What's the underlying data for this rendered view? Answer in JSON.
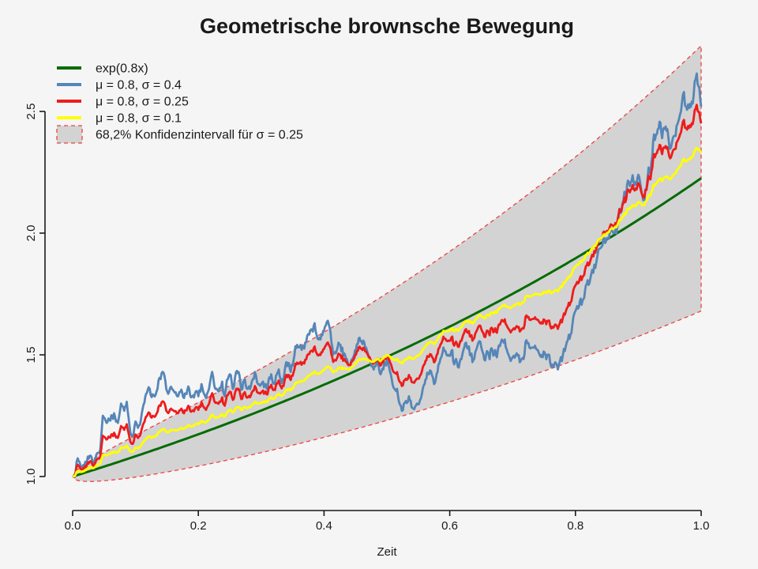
{
  "page": {
    "background_color": "#f5f5f5",
    "text_color": "#1a1a1a"
  },
  "chart_data": {
    "type": "line",
    "title": "Geometrische brownsche Bewegung",
    "x_axis": {
      "label": "Zeit",
      "range": [
        0,
        1
      ],
      "tick_values": [
        0,
        0.2,
        0.4,
        0.6,
        0.8,
        1
      ],
      "tick_labels": [
        "0.0",
        "0.2",
        "0.4",
        "0.6",
        "0.8",
        "1.0"
      ]
    },
    "y_axis": {
      "label": "",
      "range_shown": [
        1.0,
        2.5
      ],
      "tick_values": [
        1,
        1.5,
        2,
        2.5
      ],
      "tick_labels": [
        "1.0",
        "1.5",
        "2.0",
        "2.5"
      ]
    },
    "grid": false,
    "legend_position": "top-left",
    "series": [
      {
        "name": "exp-curve",
        "label": "exp(0.8x)",
        "color": "#056b05",
        "kind": "deterministic",
        "mu": 0.8,
        "start_value": 1.0,
        "end_value": 2.23
      },
      {
        "name": "gbm-sigma-0.4",
        "label": "μ = 0.8, σ = 0.4",
        "color": "#5586b8",
        "kind": "gbm-path",
        "mu": 0.8,
        "sigma": 0.4,
        "start_value": 1.0,
        "end_value": 2.52,
        "max_value": 2.66
      },
      {
        "name": "gbm-sigma-0.25",
        "label": "μ = 0.8, σ = 0.25",
        "color": "#ee1c1c",
        "kind": "gbm-path",
        "mu": 0.8,
        "sigma": 0.25,
        "start_value": 1.0,
        "end_value": 2.45,
        "max_value": 2.51
      },
      {
        "name": "gbm-sigma-0.1",
        "label": "μ = 0.8, σ = 0.1",
        "color": "#ffff00",
        "kind": "gbm-path",
        "mu": 0.8,
        "sigma": 0.1,
        "start_value": 1.0,
        "end_value": 2.34
      }
    ],
    "band": {
      "name": "confidence-band",
      "label": "68,2% Konfidenzintervall für σ = 0.25",
      "coverage": "68,2%",
      "mu": 0.8,
      "sigma": 0.25,
      "fill": "#d3d3d3",
      "border_color": "#ef4040",
      "border_style": "dashed",
      "upper_end_value": 2.77,
      "lower_end_value": 1.68
    },
    "legend": {
      "items": [
        {
          "name": "exp-curve",
          "swatch": "line",
          "color": "#056b05",
          "label": "exp(0.8x)"
        },
        {
          "name": "gbm-sigma-0.4",
          "swatch": "line",
          "color": "#5586b8",
          "label": "μ = 0.8, σ = 0.4"
        },
        {
          "name": "gbm-sigma-0.25",
          "swatch": "line",
          "color": "#ee1c1c",
          "label": "μ = 0.8, σ = 0.25"
        },
        {
          "name": "gbm-sigma-0.1",
          "swatch": "line",
          "color": "#ffff00",
          "label": "μ = 0.8, σ = 0.1"
        },
        {
          "name": "confidence-band",
          "swatch": "box",
          "fill": "#d3d3d3",
          "border": "#ef4040",
          "label": "68,2% Konfidenzintervall für σ = 0.25"
        }
      ]
    },
    "sampled_path": {
      "description_label": "μ = 0.8, σ = 0.4",
      "x": [
        0,
        0.008,
        0.014,
        0.02,
        0.027,
        0.033,
        0.039,
        0.044,
        0.048,
        0.054,
        0.06,
        0.066,
        0.072,
        0.077,
        0.082,
        0.086,
        0.092,
        0.094,
        0.1,
        0.104,
        0.11,
        0.117,
        0.121,
        0.129,
        0.135,
        0.14,
        0.146,
        0.152,
        0.158,
        0.161,
        0.168,
        0.173,
        0.18,
        0.184,
        0.19,
        0.196,
        0.2,
        0.205,
        0.209,
        0.217,
        0.222,
        0.227,
        0.232,
        0.238,
        0.242,
        0.247,
        0.25,
        0.255,
        0.26,
        0.264,
        0.27,
        0.274,
        0.278,
        0.285,
        0.29,
        0.295,
        0.303,
        0.31,
        0.316,
        0.322,
        0.328,
        0.334,
        0.34,
        0.347,
        0.353,
        0.36,
        0.37,
        0.378,
        0.385,
        0.393,
        0.4,
        0.406,
        0.416,
        0.423,
        0.429,
        0.439,
        0.448,
        0.458,
        0.467,
        0.474,
        0.479,
        0.486,
        0.49,
        0.5,
        0.505,
        0.512,
        0.519,
        0.527,
        0.535,
        0.542,
        0.548,
        0.554,
        0.56,
        0.567,
        0.575,
        0.582,
        0.59,
        0.598,
        0.604,
        0.613,
        0.62,
        0.626,
        0.632,
        0.636,
        0.642,
        0.647,
        0.655,
        0.662,
        0.668,
        0.675,
        0.686,
        0.692,
        0.697,
        0.705,
        0.713,
        0.722,
        0.73,
        0.74,
        0.748,
        0.755,
        0.763,
        0.772,
        0.78,
        0.788,
        0.795,
        0.8,
        0.807,
        0.814,
        0.818,
        0.825,
        0.83,
        0.835,
        0.843,
        0.85,
        0.856,
        0.862,
        0.87,
        0.878,
        0.885,
        0.891,
        0.896,
        0.9,
        0.904,
        0.908,
        0.913,
        0.918,
        0.925,
        0.931,
        0.938,
        0.945,
        0.952,
        0.958,
        0.965,
        0.971,
        0.976,
        0.981,
        0.985,
        0.988,
        0.993,
        0.997,
        1
      ],
      "values": [
        1,
        1.075,
        1.04,
        1.06,
        1.085,
        1.053,
        1.096,
        1.11,
        1.25,
        1.22,
        1.23,
        1.26,
        1.22,
        1.3,
        1.27,
        1.307,
        1.18,
        1.167,
        1.226,
        1.2,
        1.26,
        1.34,
        1.367,
        1.334,
        1.36,
        1.4,
        1.415,
        1.34,
        1.36,
        1.35,
        1.33,
        1.357,
        1.34,
        1.37,
        1.33,
        1.35,
        1.33,
        1.38,
        1.34,
        1.36,
        1.43,
        1.36,
        1.35,
        1.39,
        1.33,
        1.4,
        1.42,
        1.36,
        1.43,
        1.43,
        1.36,
        1.4,
        1.36,
        1.39,
        1.43,
        1.38,
        1.39,
        1.36,
        1.42,
        1.38,
        1.44,
        1.4,
        1.47,
        1.43,
        1.5,
        1.53,
        1.55,
        1.6,
        1.63,
        1.57,
        1.6,
        1.64,
        1.51,
        1.55,
        1.53,
        1.46,
        1.5,
        1.556,
        1.53,
        1.47,
        1.44,
        1.47,
        1.42,
        1.48,
        1.43,
        1.36,
        1.31,
        1.3,
        1.33,
        1.28,
        1.3,
        1.32,
        1.38,
        1.42,
        1.38,
        1.46,
        1.53,
        1.5,
        1.52,
        1.45,
        1.5,
        1.55,
        1.5,
        1.47,
        1.52,
        1.556,
        1.48,
        1.5,
        1.52,
        1.49,
        1.55,
        1.51,
        1.475,
        1.5,
        1.475,
        1.56,
        1.53,
        1.52,
        1.49,
        1.5,
        1.46,
        1.44,
        1.5,
        1.56,
        1.62,
        1.68,
        1.72,
        1.735,
        1.79,
        1.83,
        1.87,
        1.908,
        1.95,
        1.98,
        2.016,
        2.0,
        2.1,
        2.17,
        2.21,
        2.238,
        2.21,
        2.24,
        2.19,
        2.135,
        2.18,
        2.25,
        2.406,
        2.427,
        2.39,
        2.42,
        2.352,
        2.4,
        2.47,
        2.568,
        2.52,
        2.514,
        2.54,
        2.563,
        2.656,
        2.6,
        2.52
      ]
    }
  }
}
